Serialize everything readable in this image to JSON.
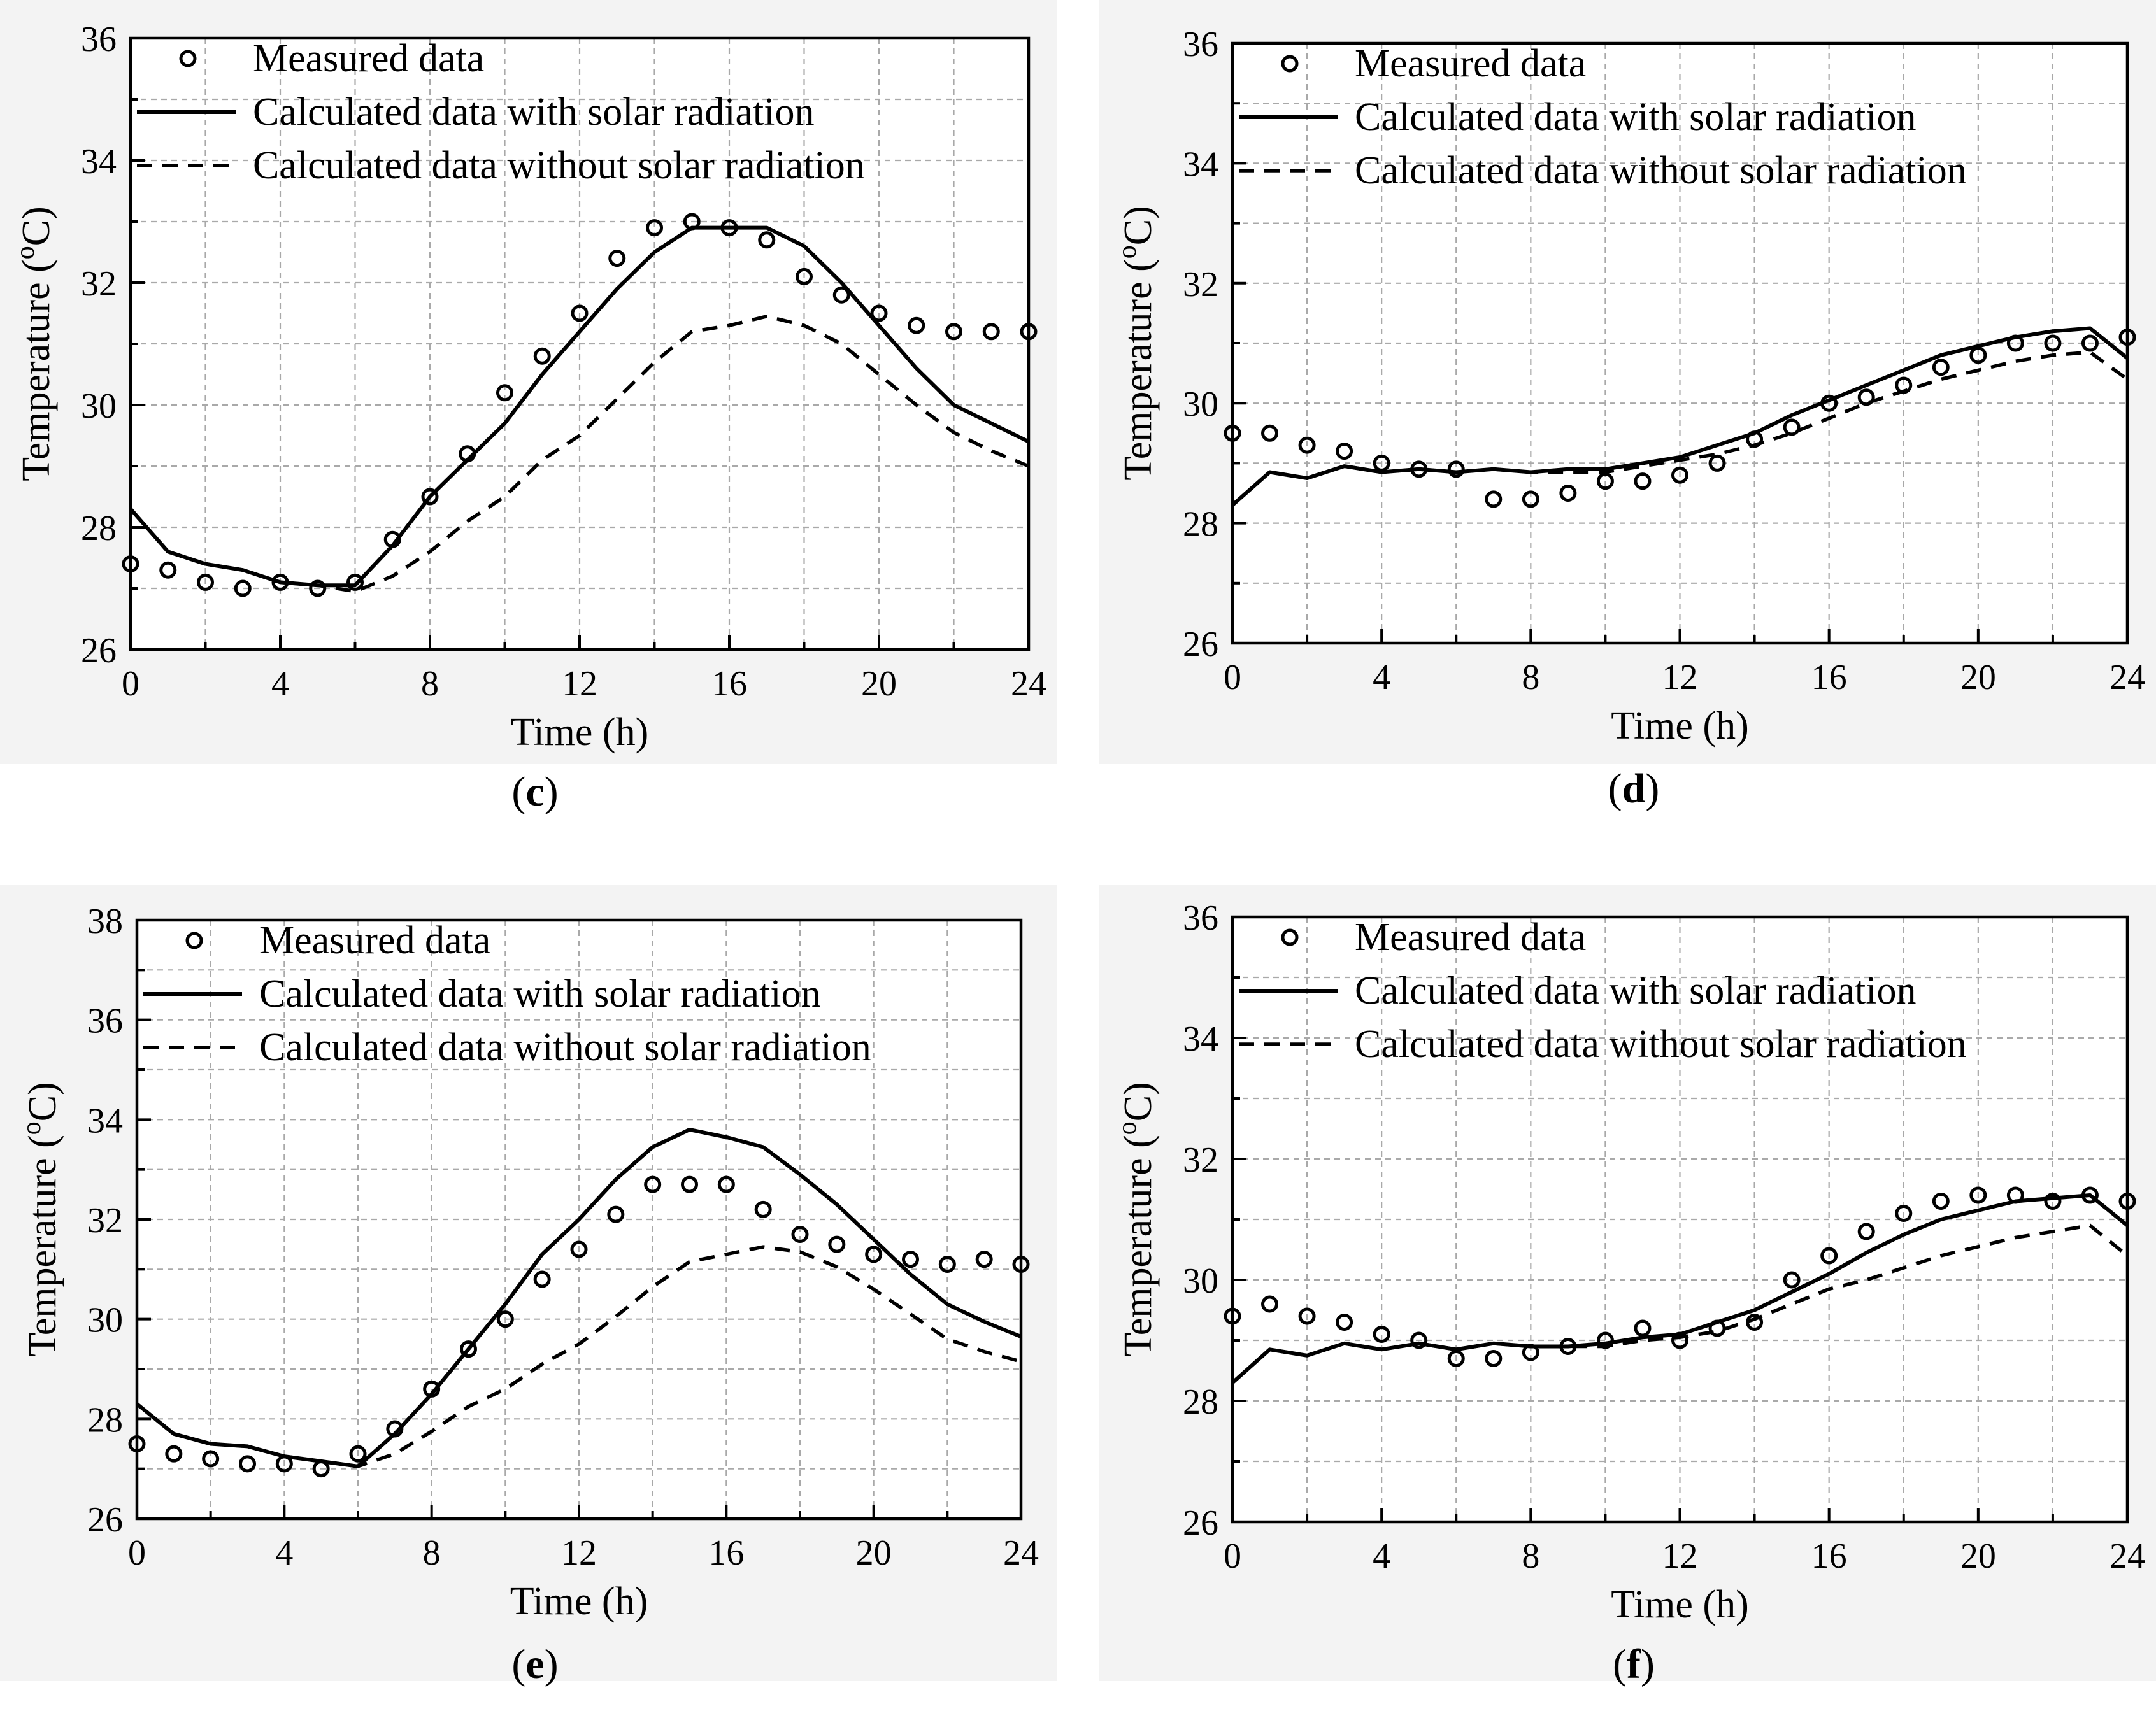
{
  "chart_data": [
    {
      "type": "line",
      "panel": "c",
      "xlabel": "Time (h)",
      "ylabel": "Temperature (°C)",
      "xlim": [
        0,
        24
      ],
      "ylim": [
        26,
        36
      ],
      "xticks": [
        "0",
        "4",
        "8",
        "12",
        "16",
        "20",
        "24"
      ],
      "yticks": [
        "26",
        "28",
        "30",
        "32",
        "34",
        "36"
      ],
      "legend": [
        "Measured data",
        "Calculated data with solar radiation",
        "Calculated data without solar radiation"
      ],
      "series": [
        {
          "name": "Measured data",
          "x": [
            0,
            1,
            2,
            3,
            4,
            5,
            6,
            7,
            8,
            9,
            10,
            11,
            12,
            13,
            14,
            15,
            16,
            17,
            18,
            19,
            20,
            21,
            22,
            23,
            24
          ],
          "values": [
            27.4,
            27.3,
            27.1,
            27.0,
            27.1,
            27.0,
            27.1,
            27.8,
            28.5,
            29.2,
            30.2,
            30.8,
            31.5,
            32.4,
            32.9,
            33.0,
            32.9,
            32.7,
            32.1,
            31.8,
            31.5,
            31.3,
            31.2,
            31.2,
            31.2
          ]
        },
        {
          "name": "Calculated data with solar radiation",
          "x": [
            0,
            1,
            2,
            3,
            4,
            5,
            6,
            7,
            8,
            9,
            10,
            11,
            12,
            13,
            14,
            15,
            16,
            17,
            18,
            19,
            20,
            21,
            22,
            23,
            24
          ],
          "values": [
            28.3,
            27.6,
            27.4,
            27.3,
            27.1,
            27.05,
            27.05,
            27.7,
            28.5,
            29.1,
            29.7,
            30.5,
            31.2,
            31.9,
            32.5,
            32.9,
            32.9,
            32.9,
            32.6,
            32.0,
            31.3,
            30.6,
            30.0,
            29.7,
            29.4
          ]
        },
        {
          "name": "Calculated data without solar radiation",
          "x": [
            0,
            1,
            2,
            3,
            4,
            5,
            6,
            7,
            8,
            9,
            10,
            11,
            12,
            13,
            14,
            15,
            16,
            17,
            18,
            19,
            20,
            21,
            22,
            23,
            24
          ],
          "values": [
            28.3,
            27.6,
            27.4,
            27.3,
            27.1,
            27.05,
            26.95,
            27.2,
            27.6,
            28.1,
            28.5,
            29.1,
            29.5,
            30.1,
            30.7,
            31.2,
            31.3,
            31.45,
            31.3,
            31.0,
            30.5,
            30.0,
            29.55,
            29.25,
            29.0
          ]
        }
      ]
    },
    {
      "type": "line",
      "panel": "d",
      "xlabel": "Time (h)",
      "ylabel": "Temperature (°C)",
      "xlim": [
        0,
        24
      ],
      "ylim": [
        26,
        36
      ],
      "xticks": [
        "0",
        "4",
        "8",
        "12",
        "16",
        "20",
        "24"
      ],
      "yticks": [
        "26",
        "28",
        "30",
        "32",
        "34",
        "36"
      ],
      "legend": [
        "Measured data",
        "Calculated data with solar radiation",
        "Calculated data without solar radiation"
      ],
      "series": [
        {
          "name": "Measured data",
          "x": [
            0,
            1,
            2,
            3,
            4,
            5,
            6,
            7,
            8,
            9,
            10,
            11,
            12,
            13,
            14,
            15,
            16,
            17,
            18,
            19,
            20,
            21,
            22,
            23,
            24
          ],
          "values": [
            29.5,
            29.5,
            29.3,
            29.2,
            29.0,
            28.9,
            28.9,
            28.4,
            28.4,
            28.5,
            28.7,
            28.7,
            28.8,
            29.0,
            29.4,
            29.6,
            30.0,
            30.1,
            30.3,
            30.6,
            30.8,
            31.0,
            31.0,
            31.0,
            31.1
          ]
        },
        {
          "name": "Calculated data with solar radiation",
          "x": [
            0,
            1,
            2,
            3,
            4,
            5,
            6,
            7,
            8,
            9,
            10,
            11,
            12,
            13,
            14,
            15,
            16,
            17,
            18,
            19,
            20,
            21,
            22,
            23,
            24
          ],
          "values": [
            28.3,
            28.85,
            28.75,
            28.95,
            28.85,
            28.9,
            28.85,
            28.9,
            28.85,
            28.9,
            28.9,
            29.0,
            29.1,
            29.3,
            29.5,
            29.8,
            30.05,
            30.3,
            30.55,
            30.8,
            30.95,
            31.1,
            31.2,
            31.25,
            30.75
          ]
        },
        {
          "name": "Calculated data without solar radiation",
          "x": [
            0,
            1,
            2,
            3,
            4,
            5,
            6,
            7,
            8,
            9,
            10,
            11,
            12,
            13,
            14,
            15,
            16,
            17,
            18,
            19,
            20,
            21,
            22,
            23,
            24
          ],
          "values": [
            28.3,
            28.85,
            28.75,
            28.95,
            28.85,
            28.9,
            28.85,
            28.9,
            28.85,
            28.85,
            28.85,
            28.95,
            29.05,
            29.15,
            29.3,
            29.5,
            29.75,
            30.0,
            30.2,
            30.4,
            30.55,
            30.7,
            30.8,
            30.85,
            30.4
          ]
        }
      ]
    },
    {
      "type": "line",
      "panel": "e",
      "xlabel": "Time (h)",
      "ylabel": "Temperature (°C)",
      "xlim": [
        0,
        24
      ],
      "ylim": [
        26,
        38
      ],
      "xticks": [
        "0",
        "4",
        "8",
        "12",
        "16",
        "20",
        "24"
      ],
      "yticks": [
        "26",
        "28",
        "30",
        "32",
        "34",
        "36",
        "38"
      ],
      "legend": [
        "Measured data",
        "Calculated data with solar radiation",
        "Calculated data without solar radiation"
      ],
      "series": [
        {
          "name": "Measured data",
          "x": [
            0,
            1,
            2,
            3,
            4,
            5,
            6,
            7,
            8,
            9,
            10,
            11,
            12,
            13,
            14,
            15,
            16,
            17,
            18,
            19,
            20,
            21,
            22,
            23,
            24
          ],
          "values": [
            27.5,
            27.3,
            27.2,
            27.1,
            27.1,
            27.0,
            27.3,
            27.8,
            28.6,
            29.4,
            30.0,
            30.8,
            31.4,
            32.1,
            32.7,
            32.7,
            32.7,
            32.2,
            31.7,
            31.5,
            31.3,
            31.2,
            31.1,
            31.2,
            31.1
          ]
        },
        {
          "name": "Calculated data with solar radiation",
          "x": [
            0,
            1,
            2,
            3,
            4,
            5,
            6,
            7,
            8,
            9,
            10,
            11,
            12,
            13,
            14,
            15,
            16,
            17,
            18,
            19,
            20,
            21,
            22,
            23,
            24
          ],
          "values": [
            28.3,
            27.7,
            27.5,
            27.45,
            27.25,
            27.15,
            27.05,
            27.7,
            28.5,
            29.4,
            30.3,
            31.3,
            32.0,
            32.8,
            33.45,
            33.8,
            33.65,
            33.45,
            32.9,
            32.3,
            31.6,
            30.9,
            30.3,
            29.95,
            29.65
          ]
        },
        {
          "name": "Calculated data without solar radiation",
          "x": [
            0,
            1,
            2,
            3,
            4,
            5,
            6,
            7,
            8,
            9,
            10,
            11,
            12,
            13,
            14,
            15,
            16,
            17,
            18,
            19,
            20,
            21,
            22,
            23,
            24
          ],
          "values": [
            28.3,
            27.7,
            27.5,
            27.45,
            27.25,
            27.15,
            27.05,
            27.3,
            27.75,
            28.25,
            28.6,
            29.1,
            29.5,
            30.05,
            30.65,
            31.15,
            31.3,
            31.45,
            31.35,
            31.05,
            30.6,
            30.1,
            29.6,
            29.35,
            29.15
          ]
        }
      ]
    },
    {
      "type": "line",
      "panel": "f",
      "xlabel": "Time (h)",
      "ylabel": "Temperature (°C)",
      "xlim": [
        0,
        24
      ],
      "ylim": [
        26,
        36
      ],
      "xticks": [
        "0",
        "4",
        "8",
        "12",
        "16",
        "20",
        "24"
      ],
      "yticks": [
        "26",
        "28",
        "30",
        "32",
        "34",
        "36"
      ],
      "legend": [
        "Measured data",
        "Calculated data with solar radiation",
        "Calculated data without solar radiation"
      ],
      "series": [
        {
          "name": "Measured data",
          "x": [
            0,
            1,
            2,
            3,
            4,
            5,
            6,
            7,
            8,
            9,
            10,
            11,
            12,
            13,
            14,
            15,
            16,
            17,
            18,
            19,
            20,
            21,
            22,
            23,
            24
          ],
          "values": [
            29.4,
            29.6,
            29.4,
            29.3,
            29.1,
            29.0,
            28.7,
            28.7,
            28.8,
            28.9,
            29.0,
            29.2,
            29.0,
            29.2,
            29.3,
            30.0,
            30.4,
            30.8,
            31.1,
            31.3,
            31.4,
            31.4,
            31.3,
            31.4,
            31.3
          ]
        },
        {
          "name": "Calculated data with solar radiation",
          "x": [
            0,
            1,
            2,
            3,
            4,
            5,
            6,
            7,
            8,
            9,
            10,
            11,
            12,
            13,
            14,
            15,
            16,
            17,
            18,
            19,
            20,
            21,
            22,
            23,
            24
          ],
          "values": [
            28.3,
            28.85,
            28.75,
            28.95,
            28.85,
            28.95,
            28.85,
            28.95,
            28.9,
            28.9,
            28.95,
            29.05,
            29.1,
            29.3,
            29.5,
            29.8,
            30.1,
            30.45,
            30.75,
            31.0,
            31.15,
            31.3,
            31.35,
            31.4,
            30.9
          ]
        },
        {
          "name": "Calculated data without solar radiation",
          "x": [
            0,
            1,
            2,
            3,
            4,
            5,
            6,
            7,
            8,
            9,
            10,
            11,
            12,
            13,
            14,
            15,
            16,
            17,
            18,
            19,
            20,
            21,
            22,
            23,
            24
          ],
          "values": [
            28.3,
            28.85,
            28.75,
            28.95,
            28.85,
            28.95,
            28.85,
            28.95,
            28.9,
            28.9,
            28.9,
            29.0,
            29.05,
            29.15,
            29.35,
            29.6,
            29.85,
            30.0,
            30.2,
            30.4,
            30.55,
            30.7,
            30.8,
            30.9,
            30.4
          ]
        }
      ]
    }
  ],
  "panel_labels": [
    {
      "open": "(",
      "letter": "c",
      "close": ")"
    },
    {
      "open": "(",
      "letter": "d",
      "close": ")"
    },
    {
      "open": "(",
      "letter": "e",
      "close": ")"
    },
    {
      "open": "(",
      "letter": "f",
      "close": ")"
    }
  ]
}
